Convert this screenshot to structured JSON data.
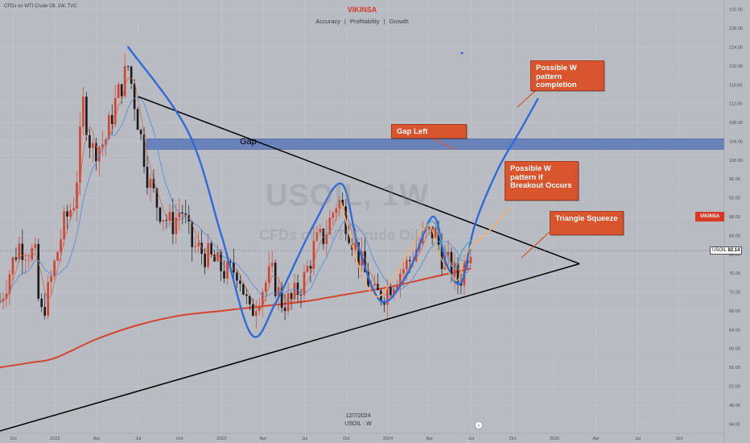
{
  "header": {
    "info": "CFDs on WTI Crude Oil, 1W, TVC",
    "brand": "VIKINSA",
    "tagline_items": [
      "Accuracy",
      "Profitability",
      "Growth"
    ]
  },
  "watermark": {
    "symbol": "USOIL, 1W",
    "description": "CFDs on WTI Crude Oil"
  },
  "symbol_tag": {
    "symbol": "USOIL",
    "price": "82.14"
  },
  "brand_tag": "VIKINSA",
  "footer": {
    "date": "12/7/2024",
    "symbol_line": "USOIL · W"
  },
  "annotations": {
    "gap": "Gap",
    "gap_left": "Gap Left",
    "w_completion": "Possible W pattern completion",
    "w_breakout": "Possible W pattern if Breakout Occurs",
    "triangle": "Triangle Squeeze"
  },
  "colors": {
    "bull": "#d6422c",
    "bear": "#1a1a1a",
    "ma_long": "#d6422c",
    "ma_short": "#5b8fd6",
    "wave_blue": "#2f6bd8",
    "wave_orange": "#f0b070",
    "gap_band": "#4f6fb5",
    "callout": "#d8552e"
  },
  "chart_data": {
    "type": "candlestick",
    "title": "",
    "timeframe": "1W",
    "current_price": 82.14,
    "ylim": [
      42,
      134
    ],
    "y_ticks": [
      44,
      48,
      52,
      56,
      60,
      64,
      68,
      72,
      76,
      80,
      84,
      88,
      92,
      96,
      100,
      104,
      108,
      112,
      116,
      120,
      124,
      128,
      132
    ],
    "x_ticks": [
      "Oct",
      "2022",
      "Apr",
      "Jul",
      "Oct",
      "2023",
      "Apr",
      "Jul",
      "Oct",
      "2024",
      "Apr",
      "Jul",
      "Oct",
      "2025",
      "Apr",
      "Jul",
      "Oct"
    ],
    "x_tick_times": [
      2021.75,
      2022.0,
      2022.25,
      2022.5,
      2022.75,
      2023.0,
      2023.25,
      2023.5,
      2023.75,
      2024.0,
      2024.25,
      2024.5,
      2024.75,
      2025.0,
      2025.25,
      2025.5,
      2025.75
    ],
    "xlim": [
      2021.67,
      2026.02
    ],
    "price_path": [
      [
        2021.67,
        70
      ],
      [
        2021.78,
        82
      ],
      [
        2021.88,
        80
      ],
      [
        2021.91,
        66
      ],
      [
        2021.96,
        72
      ],
      [
        2022.05,
        86
      ],
      [
        2022.12,
        92
      ],
      [
        2022.17,
        112
      ],
      [
        2022.22,
        102
      ],
      [
        2022.3,
        104
      ],
      [
        2022.36,
        112
      ],
      [
        2022.44,
        120
      ],
      [
        2022.5,
        108
      ],
      [
        2022.56,
        96
      ],
      [
        2022.62,
        90
      ],
      [
        2022.7,
        86
      ],
      [
        2022.76,
        90
      ],
      [
        2022.82,
        82
      ],
      [
        2022.9,
        80
      ],
      [
        2022.97,
        78
      ],
      [
        2023.03,
        76
      ],
      [
        2023.1,
        77
      ],
      [
        2023.17,
        67
      ],
      [
        2023.23,
        72
      ],
      [
        2023.3,
        76
      ],
      [
        2023.36,
        70
      ],
      [
        2023.42,
        70
      ],
      [
        2023.5,
        75
      ],
      [
        2023.56,
        82
      ],
      [
        2023.62,
        84
      ],
      [
        2023.7,
        92
      ],
      [
        2023.74,
        88
      ],
      [
        2023.8,
        82
      ],
      [
        2023.86,
        76
      ],
      [
        2023.92,
        71
      ],
      [
        2023.98,
        72
      ],
      [
        2024.06,
        76
      ],
      [
        2024.12,
        78
      ],
      [
        2024.18,
        82
      ],
      [
        2024.23,
        84
      ],
      [
        2024.28,
        85
      ],
      [
        2024.33,
        79
      ],
      [
        2024.38,
        77
      ],
      [
        2024.43,
        74
      ],
      [
        2024.47,
        80
      ],
      [
        2024.5,
        82.14
      ]
    ],
    "ma_long": [
      [
        2021.67,
        56
      ],
      [
        2021.85,
        57
      ],
      [
        2022.0,
        58
      ],
      [
        2022.25,
        62
      ],
      [
        2022.5,
        65
      ],
      [
        2022.75,
        67
      ],
      [
        2023.0,
        68
      ],
      [
        2023.25,
        69
      ],
      [
        2023.5,
        70
      ],
      [
        2023.75,
        71.5
      ],
      [
        2024.0,
        73
      ],
      [
        2024.25,
        75
      ],
      [
        2024.5,
        77
      ]
    ],
    "trendlines": [
      {
        "name": "upper",
        "points": [
          [
            2022.5,
            113.5
          ],
          [
            2025.15,
            78
          ]
        ]
      },
      {
        "name": "lower",
        "points": [
          [
            2021.67,
            42.5
          ],
          [
            2025.15,
            78
          ]
        ]
      }
    ],
    "gap_zone": {
      "low": 102.3,
      "high": 104.5
    },
    "projections": [
      {
        "name": "w_completion",
        "points": [
          [
            2024.5,
            84
          ],
          [
            2024.6,
            88
          ],
          [
            2024.72,
            98
          ],
          [
            2024.82,
            108
          ],
          [
            2024.9,
            113
          ]
        ]
      },
      {
        "name": "w_breakout",
        "points": [
          [
            2024.5,
            82
          ],
          [
            2024.58,
            84
          ],
          [
            2024.66,
            87
          ],
          [
            2024.73,
            90
          ]
        ]
      }
    ]
  }
}
